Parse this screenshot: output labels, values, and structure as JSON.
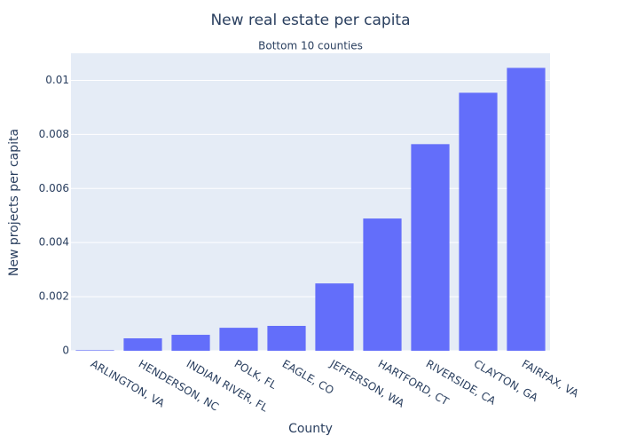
{
  "chart_data": {
    "type": "bar",
    "title": "New real estate per capita",
    "subtitle": "Bottom 10 counties",
    "x_label": "County",
    "y_label": "New projects per capita",
    "categories": [
      "ARLINGTON, VA",
      "HENDERSON, NC",
      "INDIAN RIVER, FL",
      "POLK, FL",
      "EAGLE, CO",
      "JEFFERSON, WA",
      "HARTFORD, CT",
      "RIVERSIDE, CA",
      "CLAYTON, GA",
      "FAIRFAX, VA"
    ],
    "values": [
      2e-05,
      0.00046,
      0.00059,
      0.00085,
      0.00092,
      0.00249,
      0.00489,
      0.00764,
      0.00954,
      0.01046
    ],
    "color": "#636efa",
    "ylim": [
      0,
      0.011
    ],
    "yticks": [
      0,
      0.002,
      0.004,
      0.006,
      0.008,
      0.01
    ],
    "grid": true
  }
}
